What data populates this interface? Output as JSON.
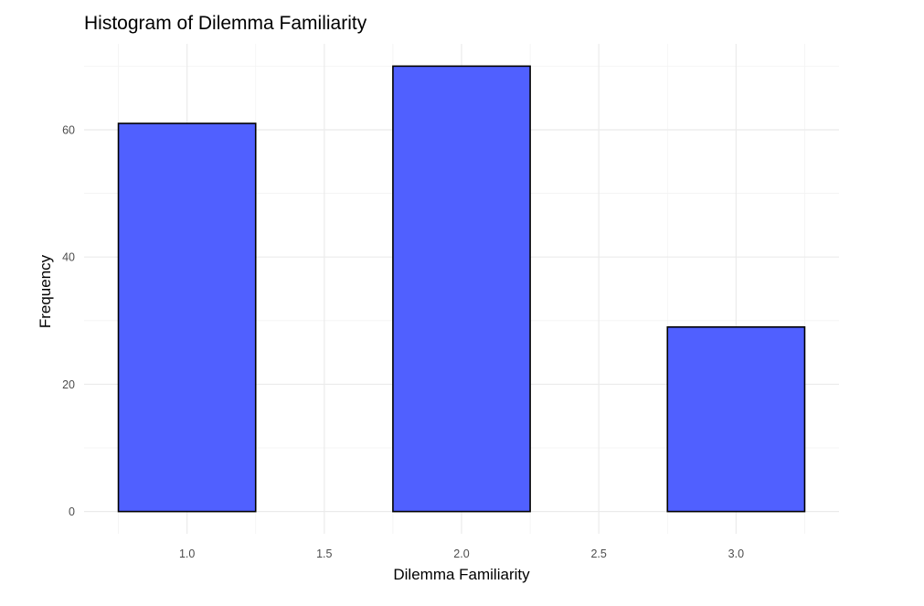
{
  "chart_data": {
    "type": "bar",
    "subtype": "histogram",
    "title": "Histogram of Dilemma Familiarity",
    "xlabel": "Dilemma Familiarity",
    "ylabel": "Frequency",
    "xlim": [
      0.625,
      3.375
    ],
    "ylim": [
      -3.5,
      73.5
    ],
    "xticks": [
      1.0,
      1.5,
      2.0,
      2.5,
      3.0
    ],
    "xtick_labels": [
      "1.0",
      "1.5",
      "2.0",
      "2.5",
      "3.0"
    ],
    "yticks": [
      0,
      20,
      40,
      60
    ],
    "ytick_labels": [
      "0",
      "20",
      "40",
      "60"
    ],
    "binwidth": 0.5,
    "bins": [
      {
        "x0": 0.75,
        "x1": 1.25,
        "count": 61
      },
      {
        "x0": 1.25,
        "x1": 1.75,
        "count": 0
      },
      {
        "x0": 1.75,
        "x1": 2.25,
        "count": 70
      },
      {
        "x0": 2.25,
        "x1": 2.75,
        "count": 0
      },
      {
        "x0": 2.75,
        "x1": 3.25,
        "count": 29
      }
    ],
    "fill_color": "#5060ff",
    "stroke_color": "#000000",
    "grid": true,
    "legend": "none"
  }
}
